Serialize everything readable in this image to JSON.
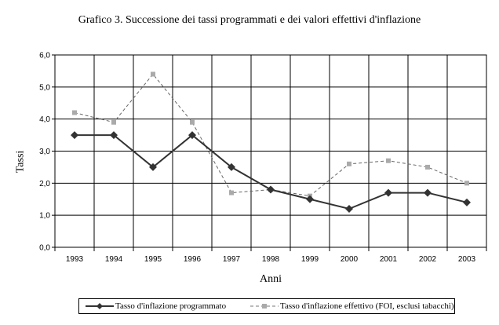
{
  "chart_data": {
    "type": "line",
    "title": "Grafico 3. Successione dei tassi programmati e dei valori effettivi d'inflazione",
    "xlabel": "Anni",
    "ylabel": "Tassi",
    "categories": [
      "1993",
      "1994",
      "1995",
      "1996",
      "1997",
      "1998",
      "1999",
      "2000",
      "2001",
      "2002",
      "2003"
    ],
    "ylim": [
      0,
      6
    ],
    "yticks": [
      "0,0",
      "1,0",
      "2,0",
      "3,0",
      "4,0",
      "5,0",
      "6,0"
    ],
    "grid": true,
    "legend_position": "bottom",
    "series": [
      {
        "name": "Tasso d'inflazione programmato",
        "values": [
          3.5,
          3.5,
          2.5,
          3.5,
          2.5,
          1.8,
          1.5,
          1.2,
          1.7,
          1.7,
          1.4
        ],
        "color": "#333333",
        "style": "solid",
        "marker": "diamond"
      },
      {
        "name": "Tasso d'inflazione effettivo (FOI, esclusi tabacchi)",
        "values": [
          4.2,
          3.9,
          5.4,
          3.9,
          1.7,
          1.8,
          1.6,
          2.6,
          2.7,
          2.5,
          2.0
        ],
        "color": "#aaaaaa",
        "style": "dashed",
        "marker": "square"
      }
    ]
  }
}
